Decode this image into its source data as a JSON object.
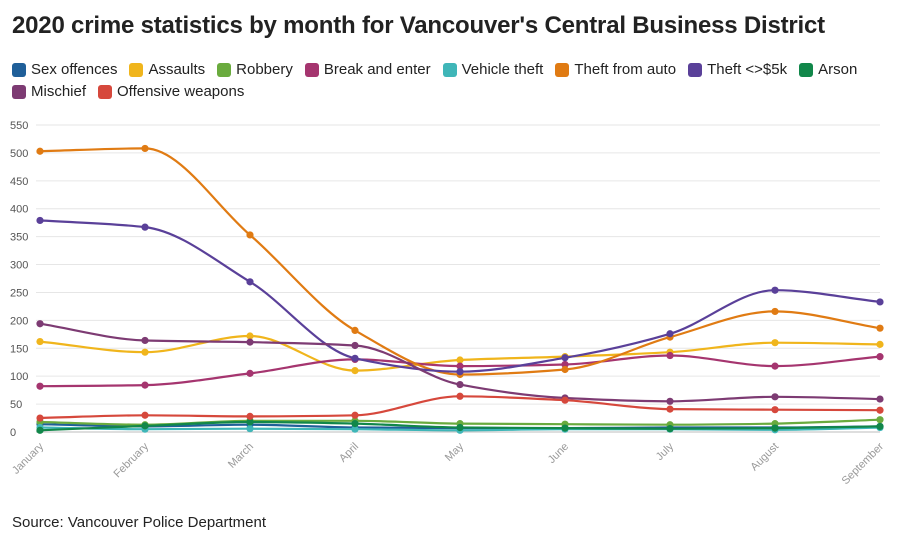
{
  "chart_data": {
    "type": "line",
    "title": "2020 crime statistics by month for Vancouver's Central Business District",
    "source": "Source: Vancouver Police Department",
    "categories": [
      "January",
      "February",
      "March",
      "April",
      "May",
      "June",
      "July",
      "August",
      "September"
    ],
    "ylim": [
      0,
      550
    ],
    "yticks": [
      "0",
      "50",
      "100",
      "150",
      "200",
      "250",
      "300",
      "350",
      "400",
      "450",
      "500",
      "550"
    ],
    "grid": true,
    "legend_position": "top",
    "series": [
      {
        "name": "Sex offences",
        "color": "#1f5f99",
        "values": [
          14,
          10,
          13,
          8,
          7,
          7,
          8,
          8,
          10
        ]
      },
      {
        "name": "Assaults",
        "color": "#f0b51c",
        "values": [
          162,
          143,
          172,
          110,
          129,
          135,
          143,
          160,
          157
        ]
      },
      {
        "name": "Robbery",
        "color": "#6aab3e",
        "values": [
          18,
          13,
          20,
          20,
          15,
          14,
          13,
          15,
          22
        ]
      },
      {
        "name": "Break and enter",
        "color": "#a5356f",
        "values": [
          82,
          84,
          105,
          130,
          118,
          121,
          137,
          118,
          135
        ]
      },
      {
        "name": "Vehicle theft",
        "color": "#3fb6b8",
        "values": [
          8,
          5,
          6,
          5,
          3,
          5,
          5,
          4,
          8
        ]
      },
      {
        "name": "Theft from auto",
        "color": "#e07b13",
        "values": [
          503,
          508,
          353,
          182,
          103,
          112,
          170,
          216,
          186
        ]
      },
      {
        "name": "Theft <>$5k",
        "color": "#5a4099",
        "values": [
          379,
          367,
          269,
          132,
          108,
          133,
          176,
          254,
          233
        ]
      },
      {
        "name": "Arson",
        "color": "#11874a",
        "values": [
          3,
          11,
          18,
          15,
          8,
          7,
          6,
          7,
          10
        ]
      },
      {
        "name": "Mischief",
        "color": "#7d3b73",
        "values": [
          194,
          164,
          161,
          155,
          85,
          61,
          55,
          63,
          59
        ]
      },
      {
        "name": "Offensive weapons",
        "color": "#d6483c",
        "values": [
          25,
          30,
          28,
          30,
          64,
          57,
          41,
          40,
          39
        ]
      }
    ]
  }
}
